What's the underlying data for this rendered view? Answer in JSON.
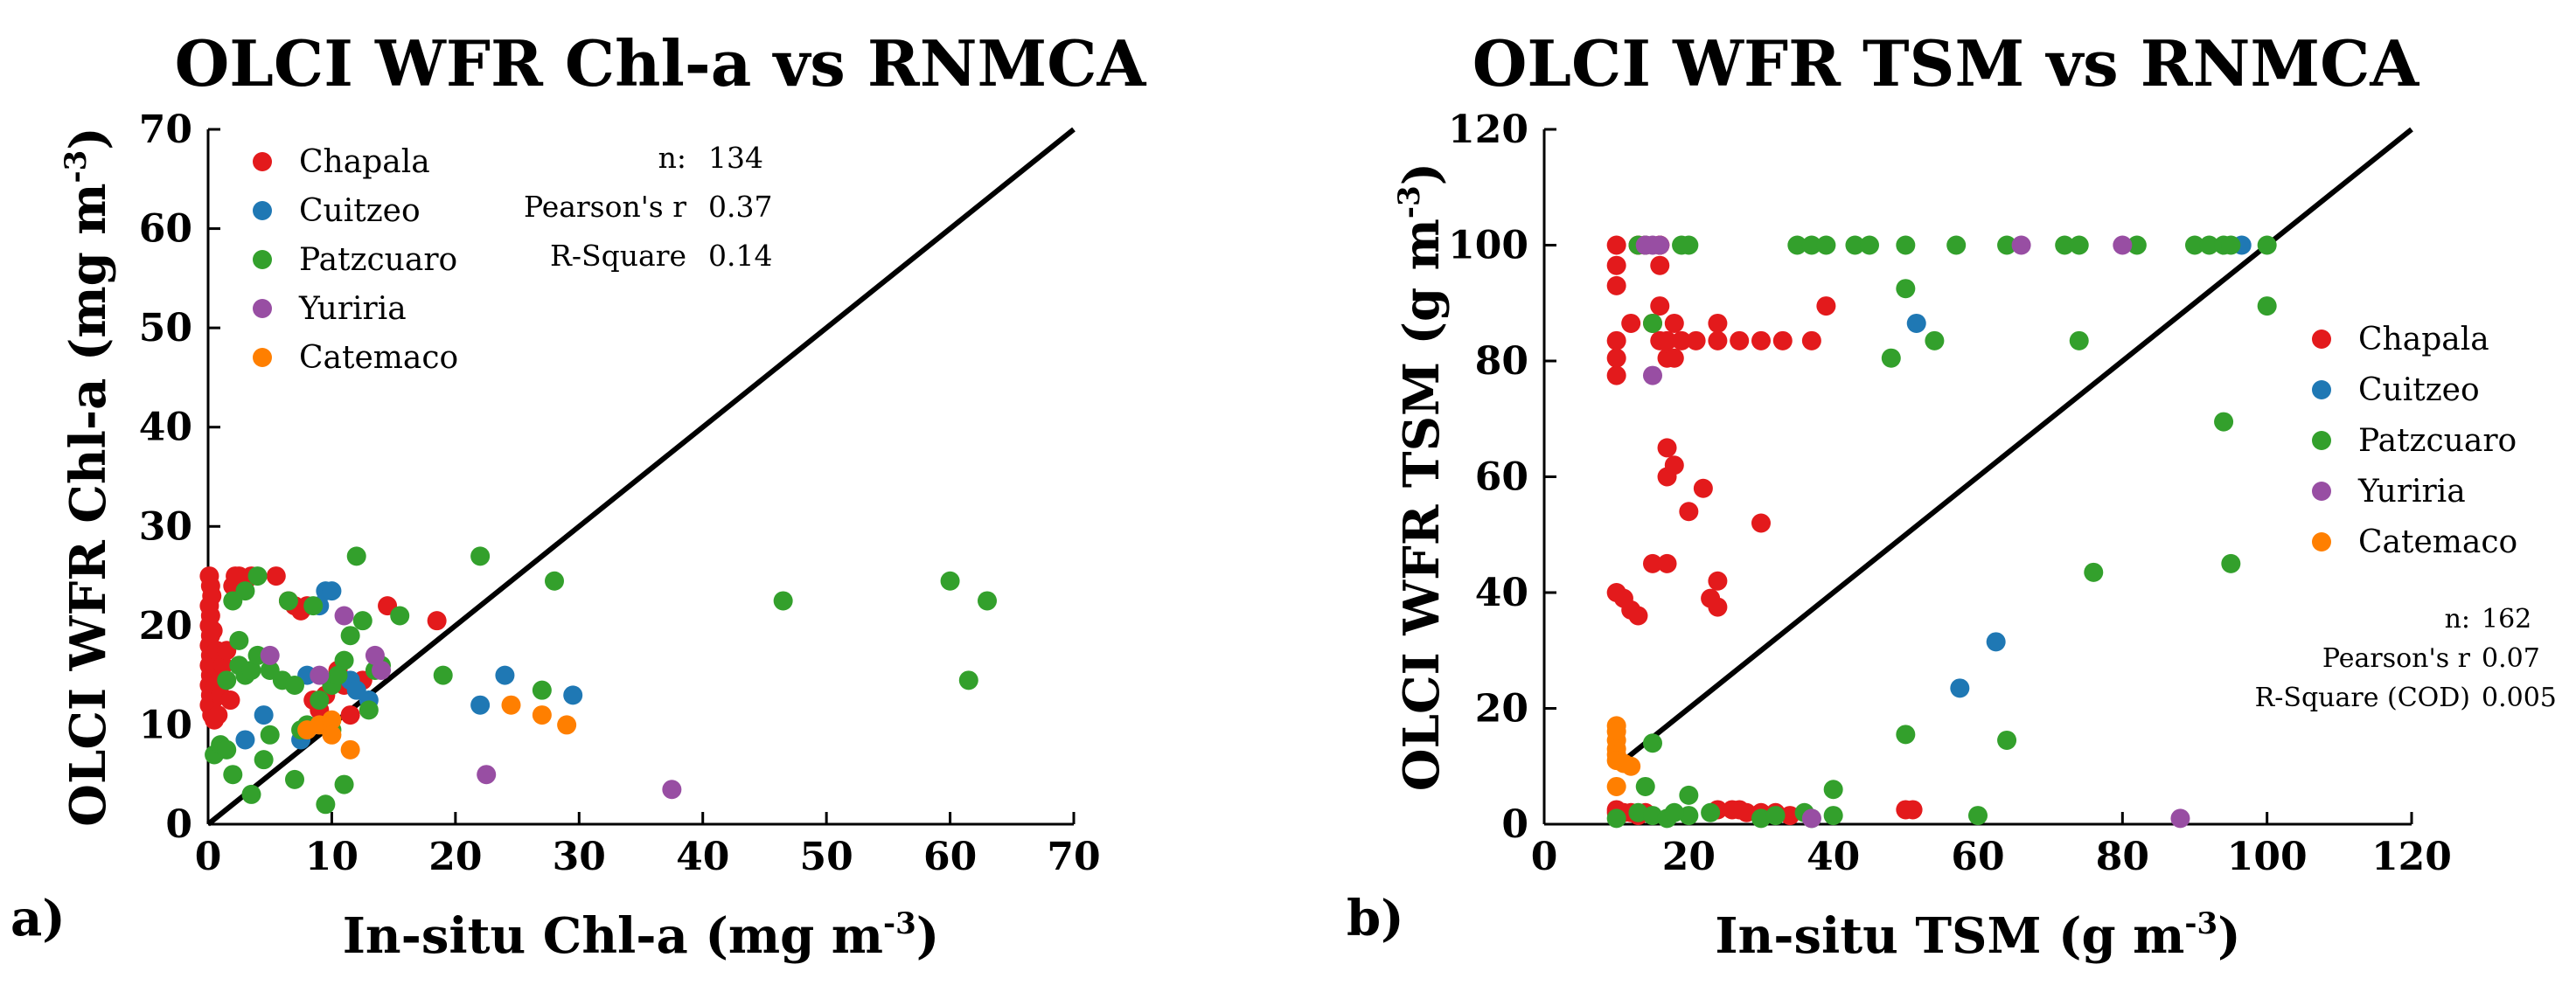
{
  "chart_data": [
    {
      "type": "scatter",
      "panel_label": "a)",
      "title": "OLCI WFR Chl-a vs RNMCA",
      "xlabel": "In-situ Chl-a (mg m",
      "ylabel": "OLCI WFR Chl-a (mg m",
      "unit_exponent": "-3",
      "xlim": [
        0,
        70
      ],
      "ylim": [
        0,
        70
      ],
      "xticks": [
        0,
        10,
        20,
        30,
        40,
        50,
        60,
        70
      ],
      "yticks": [
        0,
        10,
        20,
        30,
        40,
        50,
        60,
        70
      ],
      "identity_line": [
        [
          0,
          0
        ],
        [
          70,
          70
        ]
      ],
      "legend_position": "top-left",
      "stats_position": "top-left",
      "stats": [
        {
          "label": "n:",
          "value": "134"
        },
        {
          "label": "Pearson's r",
          "value": "0.37"
        },
        {
          "label": "R-Square",
          "value": "0.14"
        }
      ],
      "series": [
        {
          "name": "Chapala",
          "color": "#e31a1c",
          "points": [
            [
              0.1,
              25
            ],
            [
              0.2,
              24
            ],
            [
              0.3,
              23
            ],
            [
              0.1,
              22
            ],
            [
              0.2,
              21
            ],
            [
              0.1,
              20
            ],
            [
              0.2,
              19
            ],
            [
              0.1,
              18
            ],
            [
              0.2,
              17
            ],
            [
              0.1,
              16
            ],
            [
              0.2,
              15
            ],
            [
              0.1,
              14
            ],
            [
              0.2,
              13
            ],
            [
              0.1,
              12
            ],
            [
              0.3,
              11
            ],
            [
              0.5,
              10.5
            ],
            [
              0.4,
              12.5
            ],
            [
              0.6,
              14
            ],
            [
              0.5,
              16
            ],
            [
              0.7,
              17.5
            ],
            [
              0.4,
              19.5
            ],
            [
              0.8,
              11
            ],
            [
              1,
              13
            ],
            [
              1.2,
              16
            ],
            [
              1.5,
              17.5
            ],
            [
              1.8,
              12.5
            ],
            [
              2,
              24
            ],
            [
              2.2,
              25
            ],
            [
              2.5,
              25
            ],
            [
              3,
              24.5
            ],
            [
              3.5,
              25
            ],
            [
              5.5,
              25
            ],
            [
              6.5,
              22.5
            ],
            [
              7,
              22
            ],
            [
              7.5,
              21.5
            ],
            [
              8,
              22
            ],
            [
              9,
              11.5
            ],
            [
              9.5,
              13
            ],
            [
              11,
              14
            ],
            [
              11.5,
              11
            ],
            [
              12.5,
              14.5
            ],
            [
              14.5,
              22
            ],
            [
              18.5,
              20.5
            ],
            [
              8.5,
              12.5
            ],
            [
              10.5,
              15.5
            ]
          ]
        },
        {
          "name": "Cuitzeo",
          "color": "#1f78b4",
          "points": [
            [
              3,
              8.5
            ],
            [
              4.5,
              11
            ],
            [
              7.5,
              8.5
            ],
            [
              8,
              15
            ],
            [
              9,
              22
            ],
            [
              9.5,
              23.5
            ],
            [
              10,
              23.5
            ],
            [
              11.5,
              14.5
            ],
            [
              12,
              13.5
            ],
            [
              13,
              12.5
            ],
            [
              22,
              12
            ],
            [
              24,
              15
            ],
            [
              29.5,
              13
            ]
          ]
        },
        {
          "name": "Patzcuaro",
          "color": "#33a02c",
          "points": [
            [
              0.5,
              7
            ],
            [
              1,
              8
            ],
            [
              1.5,
              14.5
            ],
            [
              1.5,
              7.5
            ],
            [
              2,
              5
            ],
            [
              2,
              22.5
            ],
            [
              2.5,
              16
            ],
            [
              2.5,
              18.5
            ],
            [
              3,
              15
            ],
            [
              3,
              23.5
            ],
            [
              3.5,
              3
            ],
            [
              3.5,
              15.5
            ],
            [
              4,
              25
            ],
            [
              4,
              17
            ],
            [
              4.5,
              6.5
            ],
            [
              5,
              15.5
            ],
            [
              5,
              9
            ],
            [
              6,
              14.5
            ],
            [
              6.5,
              22.5
            ],
            [
              7,
              14
            ],
            [
              7,
              4.5
            ],
            [
              7.5,
              9.5
            ],
            [
              8,
              10
            ],
            [
              8.5,
              22
            ],
            [
              9,
              12.5
            ],
            [
              9.5,
              2
            ],
            [
              10,
              9.5
            ],
            [
              10,
              14
            ],
            [
              11,
              4
            ],
            [
              11,
              16.5
            ],
            [
              11.5,
              19
            ],
            [
              12,
              27
            ],
            [
              12.5,
              20.5
            ],
            [
              13,
              11.5
            ],
            [
              13.5,
              15.5
            ],
            [
              14,
              16
            ],
            [
              15.5,
              21
            ],
            [
              19,
              15
            ],
            [
              22,
              27
            ],
            [
              28,
              24.5
            ],
            [
              46.5,
              22.5
            ],
            [
              60,
              24.5
            ],
            [
              61.5,
              14.5
            ],
            [
              63,
              22.5
            ],
            [
              27,
              13.5
            ],
            [
              10.5,
              15
            ]
          ]
        },
        {
          "name": "Yuriria",
          "color": "#984ea3",
          "points": [
            [
              5,
              17
            ],
            [
              9,
              15
            ],
            [
              11,
              21
            ],
            [
              13.5,
              17
            ],
            [
              14,
              15.5
            ],
            [
              22.5,
              5
            ],
            [
              37.5,
              3.5
            ]
          ]
        },
        {
          "name": "Catemaco",
          "color": "#ff7f00",
          "points": [
            [
              8,
              9.5
            ],
            [
              9,
              10
            ],
            [
              10,
              10.5
            ],
            [
              10,
              9
            ],
            [
              11.5,
              7.5
            ],
            [
              24.5,
              12
            ],
            [
              27,
              11
            ],
            [
              29,
              10
            ]
          ]
        }
      ]
    },
    {
      "type": "scatter",
      "panel_label": "b)",
      "title": "OLCI WFR TSM vs RNMCA",
      "xlabel": "In-situ TSM (g m",
      "ylabel": "OLCI WFR TSM (g m",
      "unit_exponent": "-3",
      "xlim": [
        0,
        120
      ],
      "ylim": [
        0,
        120
      ],
      "xticks": [
        0,
        20,
        40,
        60,
        80,
        100,
        120
      ],
      "yticks": [
        0,
        20,
        40,
        60,
        80,
        100,
        120
      ],
      "identity_line": [
        [
          10,
          10
        ],
        [
          120,
          120
        ]
      ],
      "legend_position": "right",
      "stats_position": "bottom-right",
      "stats": [
        {
          "label": "n:",
          "value": "162"
        },
        {
          "label": "Pearson's r",
          "value": "0.07"
        },
        {
          "label": "R-Square (COD)",
          "value": "0.005"
        }
      ],
      "series": [
        {
          "name": "Chapala",
          "color": "#e31a1c",
          "points": [
            [
              10,
              100
            ],
            [
              10,
              96.5
            ],
            [
              10,
              93
            ],
            [
              10,
              83.5
            ],
            [
              10,
              80.5
            ],
            [
              10,
              77.5
            ],
            [
              12,
              86.5
            ],
            [
              13,
              100
            ],
            [
              14,
              100
            ],
            [
              15,
              86.5
            ],
            [
              16,
              100
            ],
            [
              16,
              96.5
            ],
            [
              16,
              89.5
            ],
            [
              16,
              83.5
            ],
            [
              17,
              80.5
            ],
            [
              17,
              83.5
            ],
            [
              18,
              86.5
            ],
            [
              18,
              80.5
            ],
            [
              19,
              83.5
            ],
            [
              21,
              83.5
            ],
            [
              24,
              86.5
            ],
            [
              24,
              83.5
            ],
            [
              27,
              83.5
            ],
            [
              30,
              83.5
            ],
            [
              33,
              83.5
            ],
            [
              37,
              83.5
            ],
            [
              39,
              89.5
            ],
            [
              17,
              65
            ],
            [
              17,
              60
            ],
            [
              18,
              62
            ],
            [
              20,
              54
            ],
            [
              22,
              58
            ],
            [
              15,
              45
            ],
            [
              17,
              45
            ],
            [
              24,
              42
            ],
            [
              23,
              39
            ],
            [
              24,
              37.5
            ],
            [
              30,
              52
            ],
            [
              10,
              40
            ],
            [
              11,
              39
            ],
            [
              12,
              37
            ],
            [
              13,
              36
            ],
            [
              10,
              2.5
            ],
            [
              11,
              2
            ],
            [
              12,
              2
            ],
            [
              13,
              1.5
            ],
            [
              14,
              2
            ],
            [
              24,
              2.5
            ],
            [
              26,
              2.5
            ],
            [
              27,
              2.5
            ],
            [
              28,
              2
            ],
            [
              30,
              2
            ],
            [
              32,
              2
            ],
            [
              34,
              1.5
            ],
            [
              50,
              2.5
            ],
            [
              51,
              2.5
            ],
            [
              16,
              100
            ],
            [
              10,
              2
            ]
          ]
        },
        {
          "name": "Cuitzeo",
          "color": "#1f78b4",
          "points": [
            [
              51.5,
              86.5
            ],
            [
              57.5,
              23.5
            ],
            [
              62.5,
              31.5
            ],
            [
              96.5,
              100
            ]
          ]
        },
        {
          "name": "Patzcuaro",
          "color": "#33a02c",
          "points": [
            [
              13,
              100
            ],
            [
              19,
              100
            ],
            [
              20,
              100
            ],
            [
              15,
              86.5
            ],
            [
              14,
              100
            ],
            [
              35,
              100
            ],
            [
              37,
              100
            ],
            [
              39,
              100
            ],
            [
              43,
              100
            ],
            [
              45,
              100
            ],
            [
              50,
              100
            ],
            [
              57,
              100
            ],
            [
              64,
              100
            ],
            [
              72,
              100
            ],
            [
              74,
              100
            ],
            [
              82,
              100
            ],
            [
              90,
              100
            ],
            [
              92,
              100
            ],
            [
              94,
              100
            ],
            [
              95,
              100
            ],
            [
              100,
              100
            ],
            [
              50,
              92.5
            ],
            [
              48,
              80.5
            ],
            [
              54,
              83.5
            ],
            [
              74,
              83.5
            ],
            [
              100,
              89.5
            ],
            [
              94,
              69.5
            ],
            [
              95,
              45
            ],
            [
              76,
              43.5
            ],
            [
              50,
              15.5
            ],
            [
              64,
              14.5
            ],
            [
              15,
              14
            ],
            [
              40,
              6
            ],
            [
              14,
              6.5
            ],
            [
              20,
              5
            ],
            [
              13,
              2
            ],
            [
              15,
              1.5
            ],
            [
              17,
              1
            ],
            [
              20,
              1.5
            ],
            [
              23,
              2
            ],
            [
              30,
              1
            ],
            [
              32,
              1.5
            ],
            [
              37,
              1
            ],
            [
              40,
              1.5
            ],
            [
              60,
              1.5
            ],
            [
              36,
              2
            ],
            [
              10,
              1
            ],
            [
              18,
              2
            ]
          ]
        },
        {
          "name": "Yuriria",
          "color": "#984ea3",
          "points": [
            [
              14,
              100
            ],
            [
              15,
              100
            ],
            [
              16,
              100
            ],
            [
              15,
              77.5
            ],
            [
              66,
              100
            ],
            [
              80,
              100
            ],
            [
              88,
              1
            ],
            [
              37,
              1
            ]
          ]
        },
        {
          "name": "Catemaco",
          "color": "#ff7f00",
          "points": [
            [
              10,
              17
            ],
            [
              10,
              16
            ],
            [
              10,
              14.5
            ],
            [
              10,
              13
            ],
            [
              10,
              12
            ],
            [
              10,
              11
            ],
            [
              11,
              10.5
            ],
            [
              12,
              10
            ],
            [
              10,
              6.5
            ]
          ]
        }
      ]
    }
  ]
}
